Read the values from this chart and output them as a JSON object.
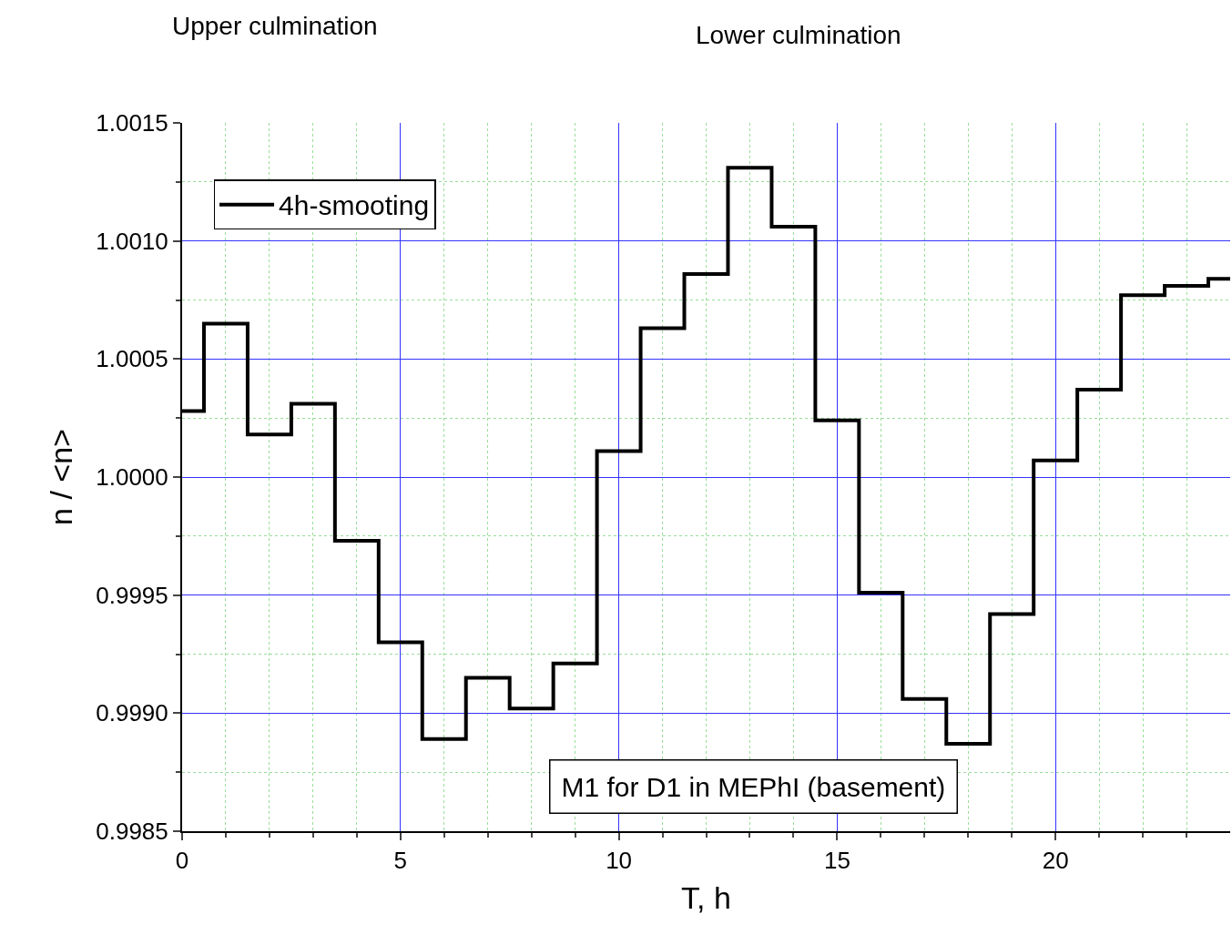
{
  "chart_data": {
    "type": "step",
    "xlabel": "T, h",
    "ylabel": "n / <n>",
    "x": [
      0,
      0.5,
      1.5,
      2.5,
      3.5,
      4.5,
      5.5,
      6.5,
      7.5,
      8.5,
      9.5,
      10.5,
      11.5,
      12.5,
      13.5,
      14.5,
      15.5,
      16.5,
      17.5,
      18.5,
      19.5,
      20.5,
      21.5,
      22.5,
      23.5,
      24
    ],
    "series": [
      {
        "name": "4h-smooting",
        "color": "#000000",
        "values": [
          1.00028,
          1.00065,
          1.00018,
          1.00031,
          0.99973,
          0.9993,
          0.99889,
          0.99915,
          0.99902,
          0.99921,
          1.00011,
          1.00063,
          1.00086,
          1.00131,
          1.00106,
          1.00024,
          0.99951,
          0.99906,
          0.99887,
          0.99942,
          1.00007,
          1.00037,
          1.00077,
          1.00081,
          1.00084,
          1.00084
        ]
      }
    ],
    "xlim": [
      0,
      24
    ],
    "xticks": [
      0,
      {
        "value": 1,
        "label": null
      },
      {
        "value": 2,
        "label": null
      },
      {
        "value": 3,
        "label": null
      },
      {
        "value": 4,
        "label": null
      },
      5,
      {
        "value": 6,
        "label": null
      },
      {
        "value": 7,
        "label": null
      },
      {
        "value": 8,
        "label": null
      },
      {
        "value": 9,
        "label": null
      },
      10,
      {
        "value": 11,
        "label": null
      },
      {
        "value": 12,
        "label": null
      },
      {
        "value": 13,
        "label": null
      },
      {
        "value": 14,
        "label": null
      },
      15,
      {
        "value": 16,
        "label": null
      },
      {
        "value": 17,
        "label": null
      },
      {
        "value": 18,
        "label": null
      },
      {
        "value": 19,
        "label": null
      },
      20,
      {
        "value": 21,
        "label": null
      },
      {
        "value": 22,
        "label": null
      },
      {
        "value": 23,
        "label": null
      }
    ],
    "ylim": [
      0.9985,
      1.0015
    ],
    "yticks": [
      {
        "value": 0.9985,
        "label": "0.9985"
      },
      {
        "value": 0.99875,
        "label": null
      },
      {
        "value": 0.999,
        "label": "0.9990"
      },
      {
        "value": 0.99925,
        "label": null
      },
      {
        "value": 0.9995,
        "label": "0.9995"
      },
      {
        "value": 0.99975,
        "label": null
      },
      {
        "value": 1.0,
        "label": "1.0000"
      },
      {
        "value": 1.00025,
        "label": null
      },
      {
        "value": 1.0005,
        "label": "1.0005"
      },
      {
        "value": 1.00075,
        "label": null
      },
      {
        "value": 1.001,
        "label": "1.0010"
      },
      {
        "value": 1.00125,
        "label": null
      },
      {
        "value": 1.0015,
        "label": "1.0015"
      }
    ],
    "annotations": [
      "Upper culmination",
      "Lower culmination",
      "M1 for D1 in MEPhI (basement)"
    ],
    "grid": true,
    "legend": "top left",
    "line_style": "solid",
    "marker": "none"
  }
}
